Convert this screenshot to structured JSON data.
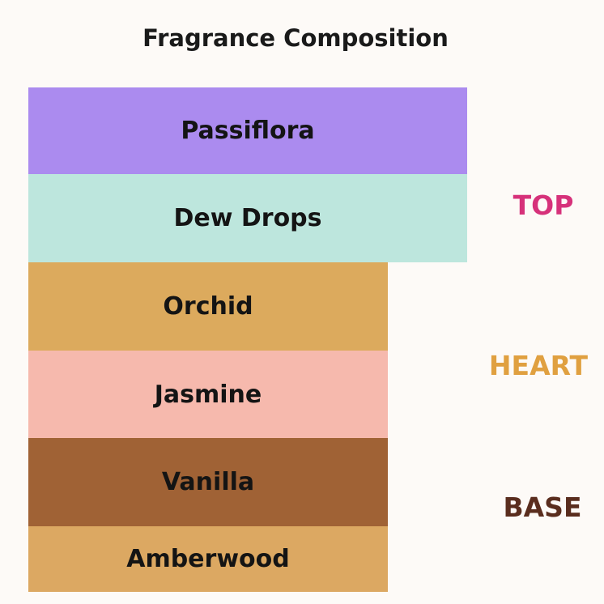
{
  "title": "Fragrance Composition",
  "layers": [
    {
      "label": "Passiflora",
      "color": "#ab8bef",
      "tier": "TOP"
    },
    {
      "label": "Dew Drops",
      "color": "#bde6dd",
      "tier": "TOP"
    },
    {
      "label": "Orchid",
      "color": "#dcaa5d",
      "tier": "HEART"
    },
    {
      "label": "Jasmine",
      "color": "#f6b9ad",
      "tier": "HEART"
    },
    {
      "label": "Vanilla",
      "color": "#a06235",
      "tier": "BASE"
    },
    {
      "label": "Amberwood",
      "color": "#dca862",
      "tier": "BASE"
    }
  ],
  "tiers": [
    {
      "label": "TOP",
      "color": "#d6317a"
    },
    {
      "label": "HEART",
      "color": "#e0a040"
    },
    {
      "label": "BASE",
      "color": "#5a2d1e"
    }
  ]
}
